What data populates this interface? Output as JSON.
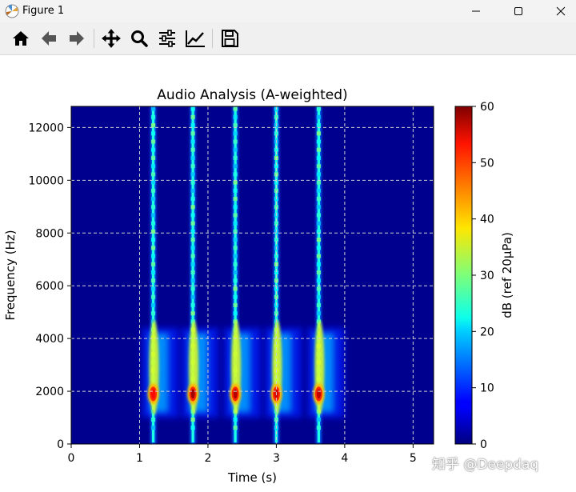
{
  "window": {
    "title": "Figure 1",
    "controls": [
      "minimize",
      "maximize",
      "close"
    ]
  },
  "toolbar": {
    "buttons": [
      {
        "name": "home",
        "icon": "home-icon"
      },
      {
        "name": "back",
        "icon": "arrow-left-icon"
      },
      {
        "name": "forward",
        "icon": "arrow-right-icon"
      },
      {
        "name": "pan",
        "icon": "move-icon"
      },
      {
        "name": "zoom",
        "icon": "magnifier-icon"
      },
      {
        "name": "configure-subplots",
        "icon": "sliders-icon"
      },
      {
        "name": "edit-axis",
        "icon": "line-chart-icon"
      },
      {
        "name": "save",
        "icon": "floppy-disk-icon"
      }
    ]
  },
  "chart_data": {
    "type": "heatmap",
    "title": "Audio Analysis (A-weighted)",
    "xlabel": "Time (s)",
    "ylabel": "Frequency (Hz)",
    "xlim": [
      0,
      5.3
    ],
    "ylim": [
      0,
      12800
    ],
    "xticks": [
      0,
      1,
      2,
      3,
      4,
      5
    ],
    "yticks": [
      0,
      2000,
      4000,
      6000,
      8000,
      10000,
      12000
    ],
    "xtick_labels": [
      "0",
      "1",
      "2",
      "3",
      "4",
      "5"
    ],
    "ytick_labels": [
      "0",
      "2000",
      "4000",
      "6000",
      "8000",
      "10000",
      "12000"
    ],
    "grid": true,
    "colormap": "jet",
    "colorbar": {
      "label": "dB (ref 20µPa)",
      "range": [
        0,
        60
      ],
      "ticks": [
        0,
        10,
        20,
        30,
        40,
        50,
        60
      ],
      "tick_labels": [
        "0",
        "10",
        "20",
        "30",
        "40",
        "50",
        "60"
      ]
    },
    "events": [
      {
        "time": 1.2,
        "peak_frequency": 1900,
        "peak_db": 52
      },
      {
        "time": 1.78,
        "peak_frequency": 1900,
        "peak_db": 58
      },
      {
        "time": 2.4,
        "peak_frequency": 1900,
        "peak_db": 57
      },
      {
        "time": 3.0,
        "peak_frequency": 1900,
        "peak_db": 55
      },
      {
        "time": 3.62,
        "peak_frequency": 1900,
        "peak_db": 56
      }
    ],
    "background_db": 1
  },
  "watermark": "知乎 @Deepdaq"
}
